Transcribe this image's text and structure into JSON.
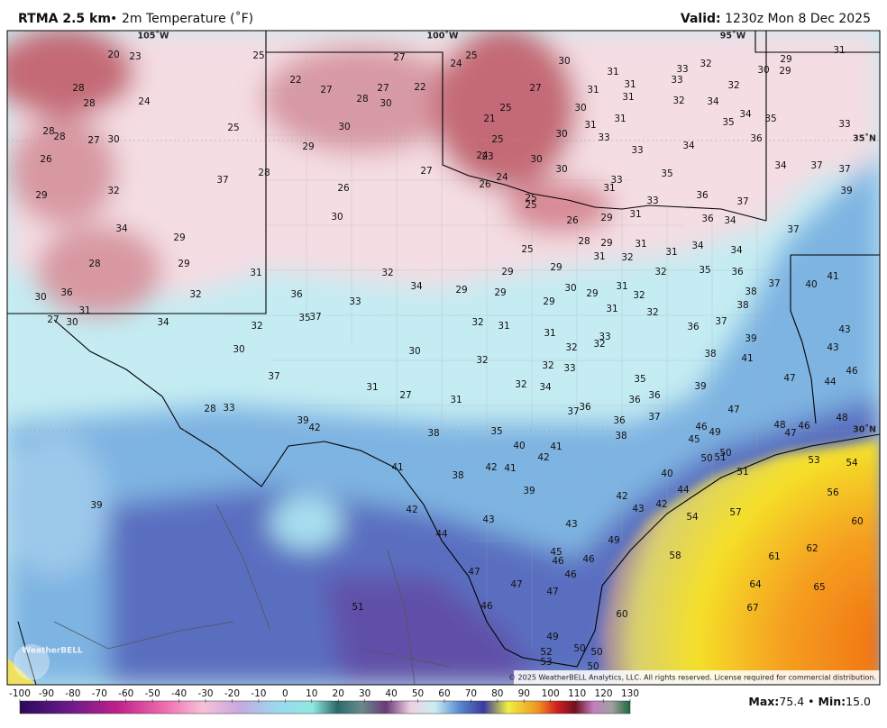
{
  "header": {
    "title": "RTMA 2.5 km",
    "separator": "•",
    "subtitle": "2m Temperature (˚F)",
    "valid_label": "Valid:",
    "valid_time": " 1230z Mon 8 Dec 2025"
  },
  "map": {
    "longitudes": [
      "105˚W",
      "100˚W",
      "95˚W"
    ],
    "latitudes": [
      "35˚N",
      "30˚N"
    ],
    "logo": "WeatherBELL",
    "copyright": "© 2025 WeatherBELL Analytics, LLC. All rights reserved. License required for commercial distribution."
  },
  "stations": [
    20,
    23,
    25,
    27,
    24,
    25,
    30,
    31,
    33,
    32,
    29,
    30,
    29,
    31,
    28,
    28,
    24,
    22,
    27,
    28,
    27,
    22,
    30,
    27,
    31,
    31,
    33,
    32,
    31,
    32,
    34,
    30,
    25,
    21,
    31,
    31,
    35,
    34,
    35,
    33,
    28,
    28,
    27,
    30,
    25,
    30,
    30,
    33,
    36,
    34,
    33,
    29,
    25,
    26,
    24,
    23,
    30,
    34,
    37,
    37,
    29,
    32,
    37,
    28,
    26,
    27,
    30,
    24,
    26,
    33,
    31,
    35,
    39,
    25,
    25,
    33,
    36,
    37,
    31,
    29,
    26,
    36,
    34,
    37,
    34,
    30,
    29,
    28,
    29,
    31,
    31,
    34,
    34,
    25,
    28,
    29,
    31,
    32,
    34,
    29,
    29,
    31,
    32,
    32,
    35,
    36,
    37,
    40,
    41,
    30,
    36,
    32,
    36,
    33,
    29,
    29,
    30,
    29,
    31,
    32,
    38,
    38,
    31,
    27,
    30,
    34,
    32,
    35,
    37,
    32,
    31,
    29,
    31,
    32,
    36,
    37,
    43,
    31,
    33,
    32,
    32,
    30,
    30,
    39,
    38,
    41,
    43,
    32,
    32,
    33,
    37,
    31,
    27,
    31,
    32,
    34,
    35,
    39,
    47,
    44,
    46,
    28,
    33,
    36,
    36,
    37,
    36,
    36,
    37,
    47,
    48,
    48,
    46,
    47,
    39,
    42,
    38,
    35,
    40,
    41,
    42,
    38,
    46,
    49,
    45,
    50,
    50,
    51,
    53,
    54,
    41,
    42,
    41,
    38,
    51,
    39,
    39,
    40,
    44,
    42,
    43,
    42,
    56,
    42,
    43,
    43,
    54,
    57,
    60,
    44,
    45,
    46,
    49,
    46,
    46,
    58,
    61,
    62,
    47,
    47,
    47,
    64,
    65,
    51,
    46,
    67,
    60,
    49,
    50,
    50,
    52,
    53,
    50
  ],
  "colorbar": {
    "ticks": [
      -100,
      -90,
      -80,
      -70,
      -60,
      -50,
      -40,
      -30,
      -20,
      -10,
      0,
      10,
      20,
      30,
      40,
      50,
      60,
      70,
      80,
      90,
      100,
      110,
      120,
      130
    ]
  },
  "footer": {
    "max_label": "Max:",
    "max_value": "75.4",
    "separator": "•",
    "min_label": "Min:",
    "min_value": "15.0"
  }
}
